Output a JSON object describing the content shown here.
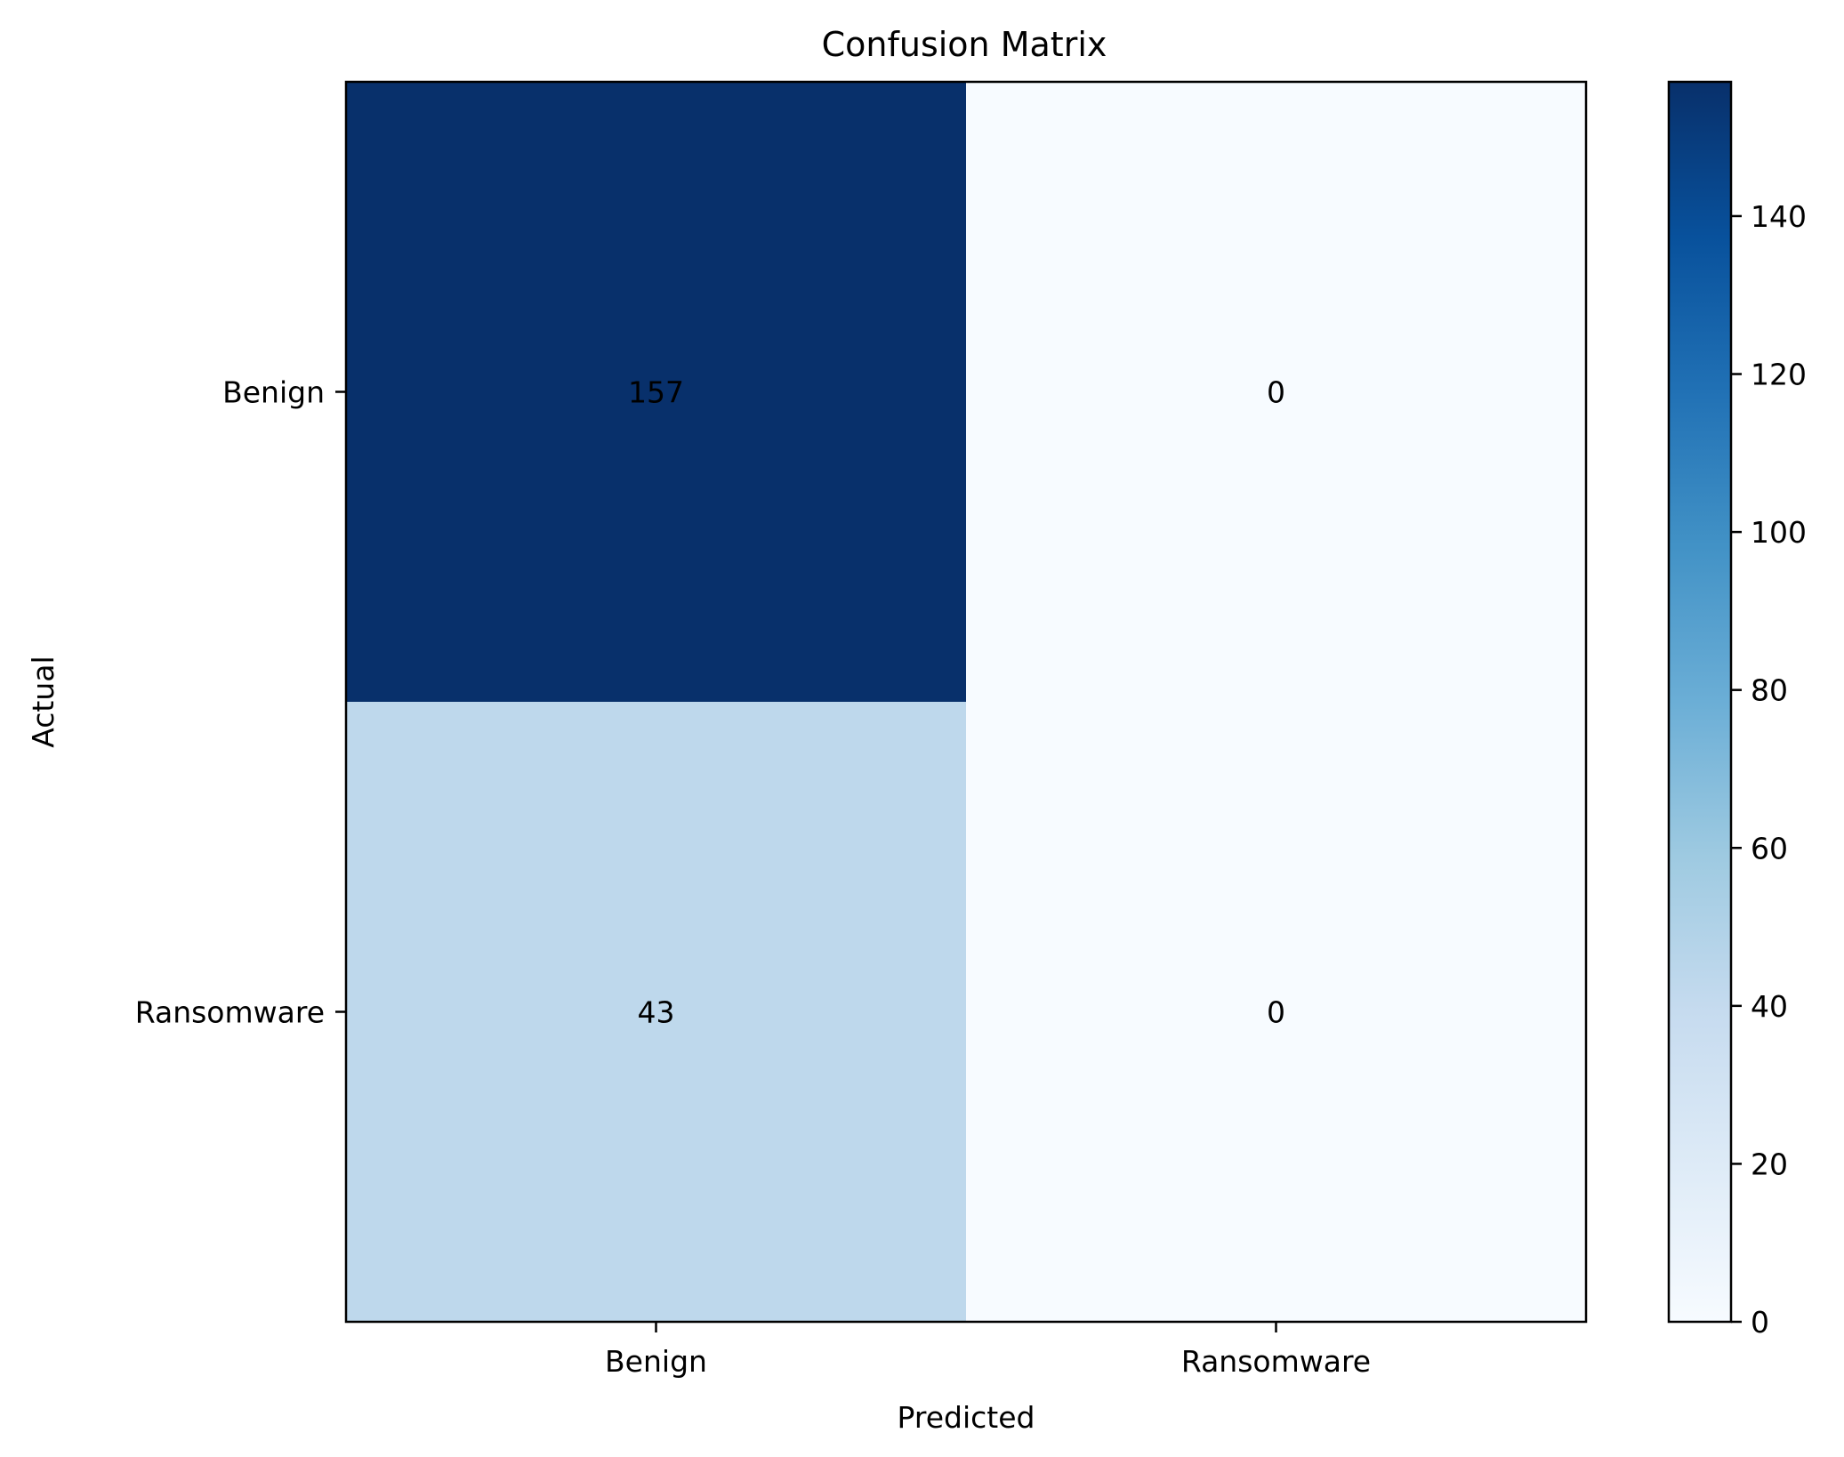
{
  "chart_data": {
    "type": "heatmap",
    "title": "Confusion Matrix",
    "xlabel": "Predicted",
    "ylabel": "Actual",
    "x_categories": [
      "Benign",
      "Ransomware"
    ],
    "y_categories": [
      "Benign",
      "Ransomware"
    ],
    "matrix": [
      [
        157,
        0
      ],
      [
        43,
        0
      ]
    ],
    "cell_labels": [
      [
        "157",
        "0"
      ],
      [
        "43",
        "0"
      ]
    ],
    "colormap": "Blues",
    "colorbar": {
      "range": [
        0,
        157
      ],
      "ticks": [
        0,
        20,
        40,
        60,
        80,
        100,
        120,
        140
      ],
      "tick_labels": [
        "0",
        "20",
        "40",
        "60",
        "80",
        "100",
        "120",
        "140"
      ]
    },
    "grid": false,
    "legend": "colorbar-right"
  }
}
